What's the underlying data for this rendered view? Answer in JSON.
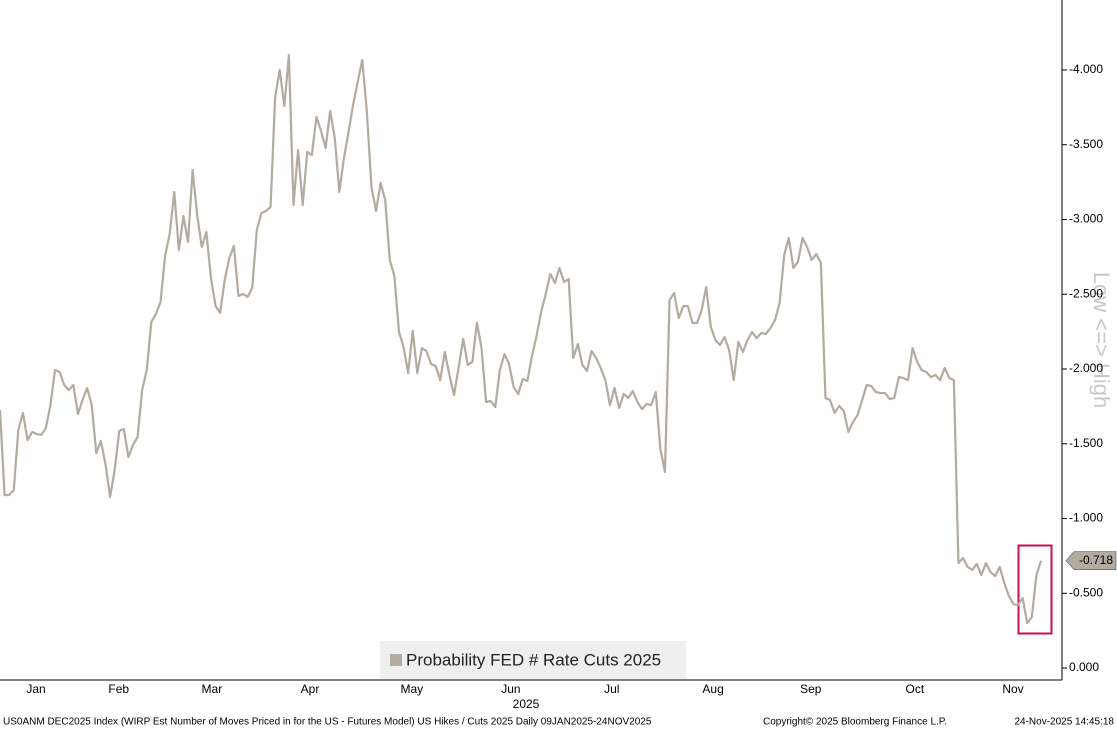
{
  "chart_data": {
    "type": "line",
    "axis_label": "Low <=> High",
    "x_axis_title": "2025",
    "legend_position": "bottom",
    "series": [
      {
        "name": "Probability FED # Rate Cuts 2025",
        "color": "#b3aaa0",
        "values": [
          -1.726,
          -1.157,
          -1.157,
          -1.191,
          -1.592,
          -1.706,
          -1.525,
          -1.579,
          -1.565,
          -1.559,
          -1.605,
          -1.759,
          -1.993,
          -1.98,
          -1.893,
          -1.86,
          -1.893,
          -1.699,
          -1.793,
          -1.873,
          -1.759,
          -1.438,
          -1.518,
          -1.365,
          -1.144,
          -1.324,
          -1.585,
          -1.599,
          -1.411,
          -1.492,
          -1.545,
          -1.86,
          -1.993,
          -2.314,
          -2.368,
          -2.448,
          -2.756,
          -2.903,
          -3.184,
          -2.796,
          -3.023,
          -2.849,
          -3.331,
          -3.03,
          -2.816,
          -2.916,
          -2.609,
          -2.421,
          -2.375,
          -2.595,
          -2.742,
          -2.823,
          -2.488,
          -2.502,
          -2.482,
          -2.542,
          -2.93,
          -3.043,
          -3.057,
          -3.084,
          -3.819,
          -4.0,
          -3.759,
          -4.1,
          -3.097,
          -3.465,
          -3.097,
          -3.452,
          -3.431,
          -3.686,
          -3.592,
          -3.478,
          -3.726,
          -3.545,
          -3.184,
          -3.411,
          -3.585,
          -3.766,
          -3.92,
          -4.067,
          -3.719,
          -3.217,
          -3.057,
          -3.244,
          -3.13,
          -2.729,
          -2.622,
          -2.247,
          -2.147,
          -1.973,
          -2.254,
          -1.973,
          -2.14,
          -2.12,
          -2.033,
          -2.02,
          -1.926,
          -2.114,
          -1.96,
          -1.826,
          -2.007,
          -2.201,
          -2.027,
          -2.047,
          -2.308,
          -2.14,
          -1.779,
          -1.786,
          -1.746,
          -1.993,
          -2.1,
          -2.033,
          -1.88,
          -1.833,
          -1.933,
          -1.92,
          -2.087,
          -2.221,
          -2.381,
          -2.502,
          -2.635,
          -2.575,
          -2.676,
          -2.582,
          -2.602,
          -2.074,
          -2.167,
          -2.027,
          -1.987,
          -2.12,
          -2.074,
          -2.007,
          -1.926,
          -1.759,
          -1.873,
          -1.739,
          -1.833,
          -1.806,
          -1.853,
          -1.779,
          -1.732,
          -1.766,
          -1.759,
          -1.846,
          -1.465,
          -1.311,
          -2.462,
          -2.508,
          -2.341,
          -2.421,
          -2.421,
          -2.308,
          -2.308,
          -2.395,
          -2.548,
          -2.281,
          -2.194,
          -2.161,
          -2.214,
          -2.127,
          -1.926,
          -2.181,
          -2.114,
          -2.194,
          -2.247,
          -2.207,
          -2.241,
          -2.234,
          -2.274,
          -2.328,
          -2.441,
          -2.763,
          -2.876,
          -2.676,
          -2.716,
          -2.876,
          -2.816,
          -2.729,
          -2.769,
          -2.709,
          -1.806,
          -1.793,
          -1.706,
          -1.753,
          -1.719,
          -1.579,
          -1.645,
          -1.692,
          -1.793,
          -1.893,
          -1.886,
          -1.846,
          -1.839,
          -1.839,
          -1.799,
          -1.806,
          -1.946,
          -1.94,
          -1.926,
          -2.14,
          -2.047,
          -1.993,
          -1.98,
          -1.946,
          -1.96,
          -1.926,
          -2.007,
          -1.94,
          -1.926,
          -0.702,
          -0.736,
          -0.676,
          -0.656,
          -0.696,
          -0.622,
          -0.702,
          -0.642,
          -0.615,
          -0.676,
          -0.569,
          -0.482,
          -0.428,
          -0.421,
          -0.468,
          -0.301,
          -0.341,
          -0.622,
          -0.718
        ]
      }
    ],
    "ylim": [
      0.08,
      -4.468
    ],
    "yticks": [
      {
        "value": -4,
        "label": "-4.000"
      },
      {
        "value": -3.5,
        "label": "-3.500"
      },
      {
        "value": -3,
        "label": "-3.000"
      },
      {
        "value": -2.5,
        "label": "-2.500"
      },
      {
        "value": -2,
        "label": "-2.000"
      },
      {
        "value": -1.5,
        "label": "-1.500"
      },
      {
        "value": -1,
        "label": "-1.000"
      },
      {
        "value": -0.5,
        "label": "-0.500"
      },
      {
        "value": 0,
        "label": "0.000"
      }
    ],
    "xticks": [
      {
        "value": 7.85,
        "label": "Jan"
      },
      {
        "value": 25.9,
        "label": "Feb"
      },
      {
        "value": 46.2,
        "label": "Mar"
      },
      {
        "value": 67.6,
        "label": "Apr"
      },
      {
        "value": 89.8,
        "label": "May"
      },
      {
        "value": 111.4,
        "label": "Jun"
      },
      {
        "value": 133.4,
        "label": "Jul"
      },
      {
        "value": 155.5,
        "label": "Aug"
      },
      {
        "value": 176.8,
        "label": "Sep"
      },
      {
        "value": 199.5,
        "label": "Oct"
      },
      {
        "value": 220.9,
        "label": "Nov"
      }
    ]
  },
  "footer": {
    "source": "US0ANM DEC2025 Index (WIRP Est Number of Moves Priced in for the US - Futures Model) US Hikes / Cuts 2025 Daily 09JAN2025-24NOV2025",
    "copyright": "Copyright© 2025 Bloomberg Finance L.P.",
    "timestamp": "24-Nov-2025 14:45:18"
  }
}
